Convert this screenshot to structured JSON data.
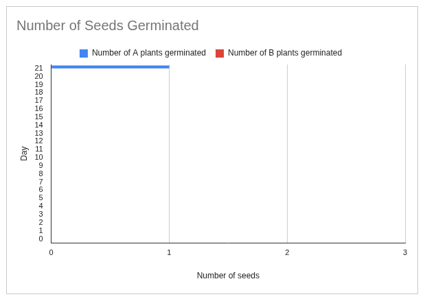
{
  "chart_data": {
    "type": "bar",
    "orientation": "horizontal",
    "title": "Number of Seeds Germinated",
    "x_label": "Number of seeds",
    "y_label": "Day",
    "categories": [
      0,
      1,
      2,
      3,
      4,
      5,
      6,
      7,
      8,
      9,
      10,
      11,
      12,
      13,
      14,
      15,
      16,
      17,
      18,
      19,
      20,
      21
    ],
    "series": [
      {
        "name": "Number of A plants germinated",
        "color": "#4285f4",
        "values": [
          0,
          0,
          0,
          0,
          0,
          0,
          0,
          0,
          0,
          0,
          0,
          0,
          0,
          0,
          0,
          0,
          0,
          0,
          0,
          0,
          0,
          1
        ]
      },
      {
        "name": "Number of B plants germinated",
        "color": "#db4437",
        "values": [
          0,
          0,
          0,
          0,
          0,
          0,
          0,
          0,
          0,
          0,
          0,
          0,
          0,
          0,
          0,
          0,
          0,
          0,
          0,
          0,
          0,
          0
        ]
      }
    ],
    "xlim": [
      0,
      3
    ],
    "xticks": [
      0,
      1,
      2,
      3
    ],
    "grid": true,
    "legend": "top"
  }
}
